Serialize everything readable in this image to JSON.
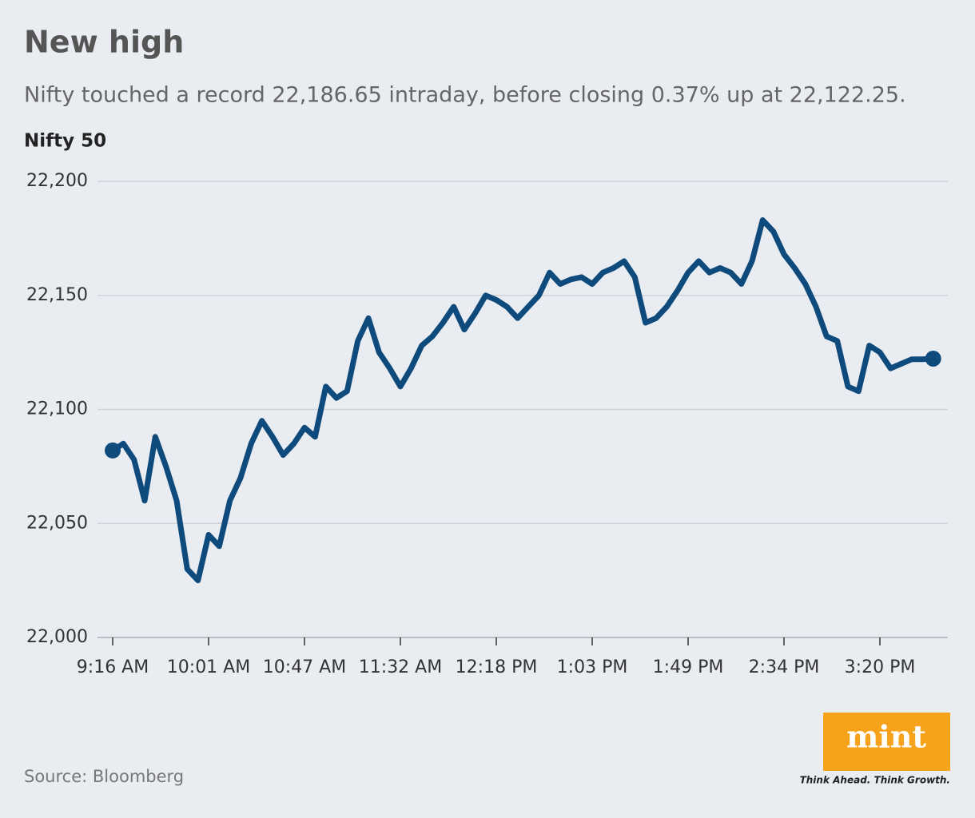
{
  "chart_data": {
    "type": "line",
    "title": "New high",
    "subtitle": "Nifty touched a record 22,186.65 intraday, before closing 0.37% up at 22,122.25.",
    "y_label": "Nifty 50",
    "x": [
      "9:16 AM",
      "9:21 AM",
      "9:26 AM",
      "9:31 AM",
      "9:36 AM",
      "9:41 AM",
      "9:46 AM",
      "9:51 AM",
      "9:56 AM",
      "10:01 AM",
      "10:06 AM",
      "10:11 AM",
      "10:16 AM",
      "10:21 AM",
      "10:26 AM",
      "10:31 AM",
      "10:36 AM",
      "10:41 AM",
      "10:47 AM",
      "10:52 AM",
      "10:57 AM",
      "11:02 AM",
      "11:07 AM",
      "11:12 AM",
      "11:17 AM",
      "11:22 AM",
      "11:27 AM",
      "11:32 AM",
      "11:37 AM",
      "11:42 AM",
      "11:47 AM",
      "11:52 AM",
      "11:57 AM",
      "12:02 PM",
      "12:07 PM",
      "12:12 PM",
      "12:18 PM",
      "12:23 PM",
      "12:28 PM",
      "12:33 PM",
      "12:38 PM",
      "12:43 PM",
      "12:48 PM",
      "12:53 PM",
      "12:58 PM",
      "1:03 PM",
      "1:08 PM",
      "1:13 PM",
      "1:18 PM",
      "1:23 PM",
      "1:28 PM",
      "1:33 PM",
      "1:38 PM",
      "1:43 PM",
      "1:49 PM",
      "1:54 PM",
      "1:59 PM",
      "2:04 PM",
      "2:09 PM",
      "2:14 PM",
      "2:19 PM",
      "2:24 PM",
      "2:29 PM",
      "2:34 PM",
      "2:39 PM",
      "2:44 PM",
      "2:49 PM",
      "2:54 PM",
      "2:59 PM",
      "3:04 PM",
      "3:09 PM",
      "3:14 PM",
      "3:20 PM",
      "3:22 PM",
      "3:24 PM",
      "3:26 PM",
      "3:28 PM",
      "3:30 PM"
    ],
    "series": [
      {
        "name": "Nifty 50",
        "color": "#0e4a7b",
        "values": [
          22082,
          22085,
          22078,
          22060,
          22088,
          22075,
          22060,
          22030,
          22025,
          22045,
          22040,
          22060,
          22070,
          22085,
          22095,
          22088,
          22080,
          22085,
          22092,
          22088,
          22110,
          22105,
          22108,
          22130,
          22140,
          22125,
          22118,
          22110,
          22118,
          22128,
          22132,
          22138,
          22145,
          22135,
          22142,
          22150,
          22148,
          22145,
          22140,
          22145,
          22150,
          22160,
          22155,
          22157,
          22158,
          22155,
          22160,
          22162,
          22165,
          22158,
          22138,
          22140,
          22145,
          22152,
          22160,
          22165,
          22160,
          22162,
          22160,
          22155,
          22165,
          22183,
          22178,
          22168,
          22162,
          22155,
          22145,
          22132,
          22130,
          22110,
          22108,
          22128,
          22125,
          22118,
          22120,
          22122,
          22122,
          22122.25
        ]
      }
    ],
    "xticks": [
      "9:16 AM",
      "10:01 AM",
      "10:47 AM",
      "11:32 AM",
      "12:18 PM",
      "1:03 PM",
      "1:49 PM",
      "2:34 PM",
      "3:20 PM"
    ],
    "ylim": [
      22000,
      22200
    ],
    "yticks": [
      {
        "value": 22000,
        "label": "22,000"
      },
      {
        "value": 22050,
        "label": "22,050"
      },
      {
        "value": 22100,
        "label": "22,100"
      },
      {
        "value": 22150,
        "label": "22,150"
      },
      {
        "value": 22200,
        "label": "22,200"
      }
    ],
    "grid": true
  },
  "source": "Source: Bloomberg",
  "logo": {
    "name": "mint",
    "tagline": "Think Ahead. Think Growth."
  }
}
